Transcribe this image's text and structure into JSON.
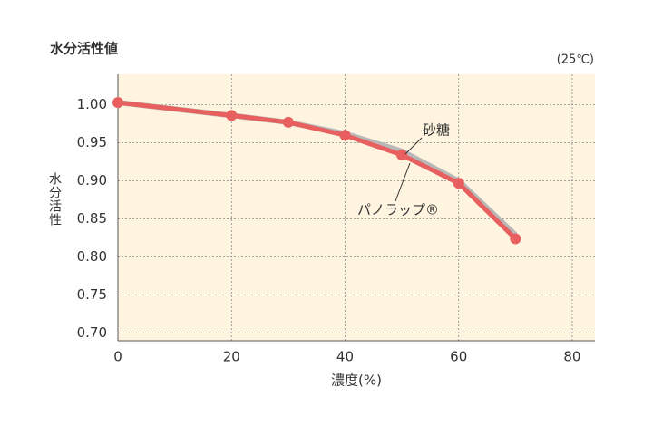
{
  "chart_data": {
    "type": "line",
    "title": "水分活性値",
    "subtitle": "(25℃)",
    "x_label": "濃度(%)",
    "y_label": "水分活性",
    "x": [
      0,
      20,
      30,
      40,
      50,
      60,
      70
    ],
    "series": [
      {
        "name": "砂糖",
        "color": "#b8b8b8",
        "values": [
          1.003,
          0.986,
          0.977,
          0.962,
          0.939,
          0.9,
          0.829
        ]
      },
      {
        "name": "パノラップ®",
        "color": "#e85f5f",
        "values": [
          1.003,
          0.986,
          0.977,
          0.96,
          0.934,
          0.897,
          0.824
        ]
      }
    ],
    "xlim": [
      0,
      84
    ],
    "xticks": [
      0,
      20,
      40,
      60,
      80
    ],
    "ylim": [
      0.69,
      1.04
    ],
    "yticks": [
      {
        "value": 0.7,
        "label": "0.70"
      },
      {
        "value": 0.75,
        "label": "0.75"
      },
      {
        "value": 0.8,
        "label": "0.80"
      },
      {
        "value": 0.85,
        "label": "0.85"
      },
      {
        "value": 0.9,
        "label": "0.90"
      },
      {
        "value": 0.95,
        "label": "0.95"
      },
      {
        "value": 1.0,
        "label": "1.00"
      }
    ],
    "grid": true,
    "background": "#fff4e0"
  }
}
